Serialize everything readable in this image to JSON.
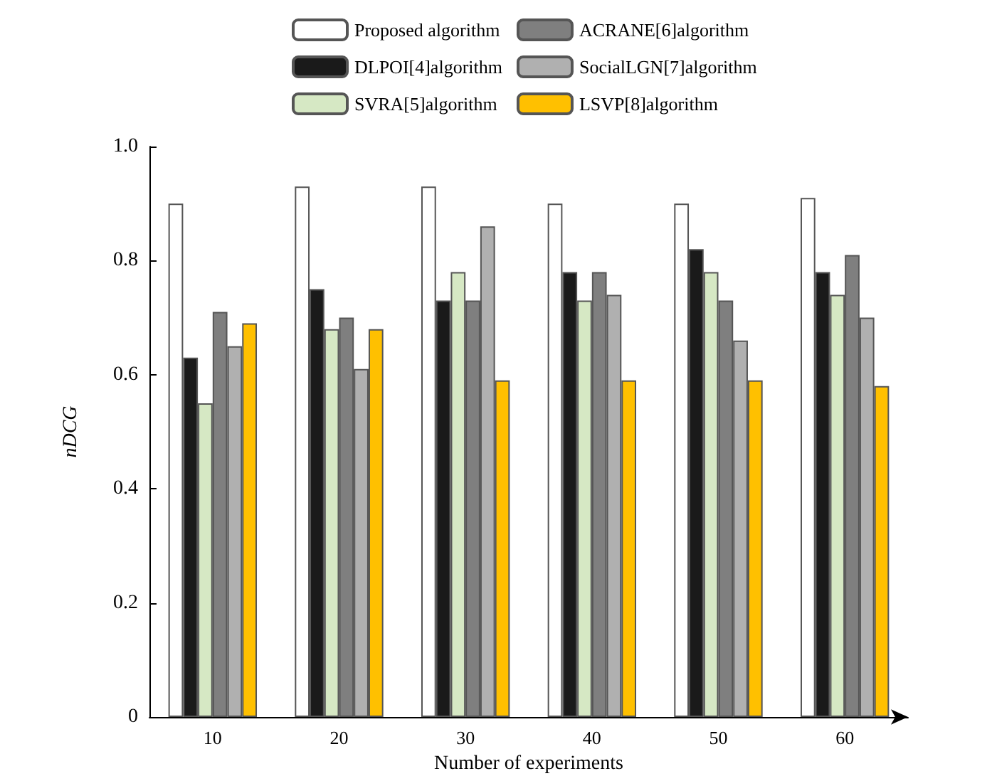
{
  "chart_data": {
    "type": "bar",
    "xlabel": "Number of experiments",
    "ylabel": "nDCG",
    "categories": [
      "10",
      "20",
      "30",
      "40",
      "50",
      "60"
    ],
    "series": [
      {
        "name": "Proposed algorithm",
        "color": "#ffffff",
        "values": [
          0.9,
          0.93,
          0.93,
          0.9,
          0.9,
          0.91
        ]
      },
      {
        "name": "DLPOI[4]algorithm",
        "color": "#1a1a1a",
        "values": [
          0.63,
          0.75,
          0.73,
          0.78,
          0.82,
          0.78
        ]
      },
      {
        "name": "SVRA[5]algorithm",
        "color": "#d6e8c4",
        "values": [
          0.55,
          0.68,
          0.78,
          0.73,
          0.78,
          0.74
        ]
      },
      {
        "name": "ACRANE[6]algorithm",
        "color": "#7f7f7f",
        "values": [
          0.71,
          0.7,
          0.73,
          0.78,
          0.73,
          0.81
        ]
      },
      {
        "name": "SocialLGN[7]algorithm",
        "color": "#b0b0b0",
        "values": [
          0.65,
          0.61,
          0.86,
          0.74,
          0.66,
          0.7
        ]
      },
      {
        "name": "LSVP[8]algorithm",
        "color": "#ffc000",
        "values": [
          0.69,
          0.68,
          0.59,
          0.59,
          0.59,
          0.58
        ]
      }
    ],
    "ylim": [
      0,
      1
    ],
    "yticks": [
      0,
      0.2,
      0.4,
      0.6,
      0.8,
      {
        "value": 1,
        "label": "1.0"
      }
    ],
    "grid": false,
    "legend": "top"
  }
}
